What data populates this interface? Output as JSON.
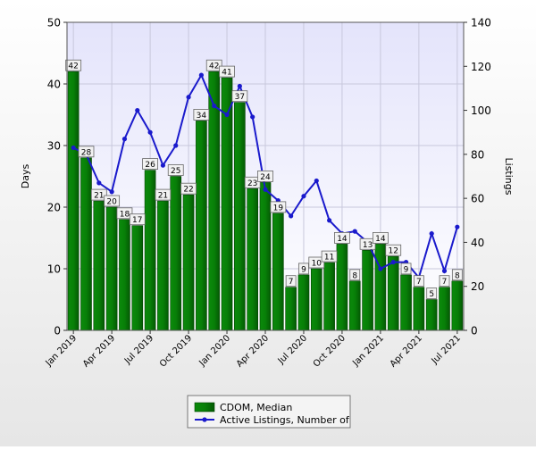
{
  "chart_data": {
    "type": "bar",
    "title": "",
    "categories": [
      "Jan 2019",
      "Feb 2019",
      "Mar 2019",
      "Apr 2019",
      "May 2019",
      "Jun 2019",
      "Jul 2019",
      "Aug 2019",
      "Sep 2019",
      "Oct 2019",
      "Nov 2019",
      "Dec 2019",
      "Jan 2020",
      "Feb 2020",
      "Mar 2020",
      "Apr 2020",
      "May 2020",
      "Jun 2020",
      "Jul 2020",
      "Aug 2020",
      "Sep 2020",
      "Oct 2020",
      "Nov 2020",
      "Dec 2020",
      "Jan 2021",
      "Feb 2021",
      "Mar 2021",
      "Apr 2021",
      "May 2021",
      "Jun 2021",
      "Jul 2021"
    ],
    "x_tick_labels": [
      "Jan 2019",
      "Apr 2019",
      "Jul 2019",
      "Oct 2019",
      "Jan 2020",
      "Apr 2020",
      "Jul 2020",
      "Oct 2020",
      "Jan 2021",
      "Apr 2021",
      "Jul 2021"
    ],
    "ylabel": "Days",
    "y2label": "Listings",
    "ylim": [
      0,
      50
    ],
    "y_ticks": [
      0,
      10,
      20,
      30,
      40,
      50
    ],
    "y2lim": [
      0,
      140
    ],
    "y2_ticks": [
      0,
      20,
      40,
      60,
      80,
      100,
      120,
      140
    ],
    "grid": true,
    "legend_position": "bottom",
    "series": [
      {
        "name": "CDOM, Median",
        "type": "bar",
        "axis": "left",
        "color": "#0a7a0a",
        "values": [
          42,
          28,
          21,
          20,
          18,
          17,
          26,
          21,
          25,
          22,
          34,
          42,
          41,
          37,
          23,
          24,
          19,
          7,
          9,
          10,
          11,
          14,
          8,
          13,
          14,
          12,
          9,
          7,
          5,
          7,
          8
        ]
      },
      {
        "name": "Active Listings, Number of",
        "type": "line",
        "axis": "right",
        "color": "#1a1acc",
        "values": [
          83,
          80,
          67,
          63,
          87,
          100,
          90,
          75,
          84,
          106,
          116,
          102,
          98,
          111,
          97,
          64,
          59,
          52,
          61,
          68,
          50,
          44,
          45,
          40,
          28,
          31,
          31,
          24,
          44,
          27,
          47
        ]
      }
    ]
  }
}
